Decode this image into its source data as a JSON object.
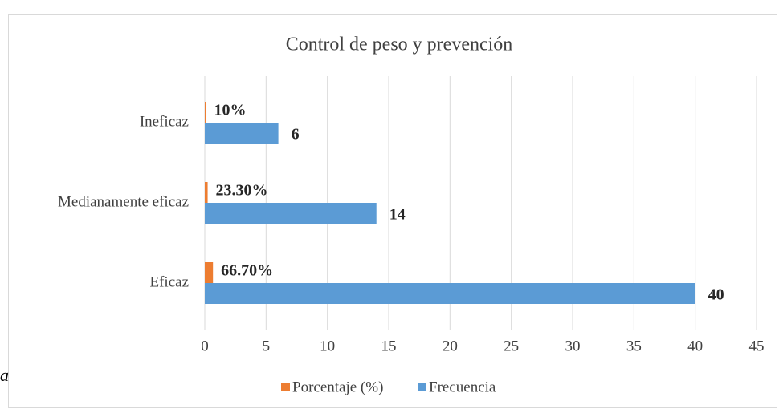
{
  "chart_data": {
    "type": "bar",
    "orientation": "horizontal",
    "title": "Control de peso y prevención",
    "categories": [
      "Eficaz",
      "Medianamente eficaz",
      "Ineficaz"
    ],
    "series": [
      {
        "name": "Porcentaje (%)",
        "color": "#ed7d31",
        "values": [
          0.667,
          0.233,
          0.1
        ],
        "value_labels": [
          "66.70%",
          "23.30%",
          "10%"
        ]
      },
      {
        "name": "Frecuencia",
        "color": "#5b9bd5",
        "values": [
          40,
          14,
          6
        ]
      }
    ],
    "xlim": [
      0,
      45
    ],
    "xticks": [
      0,
      5,
      10,
      15,
      20,
      25,
      30,
      35,
      40,
      45
    ],
    "grid": true,
    "legend": "bottom",
    "annotation": "a"
  }
}
